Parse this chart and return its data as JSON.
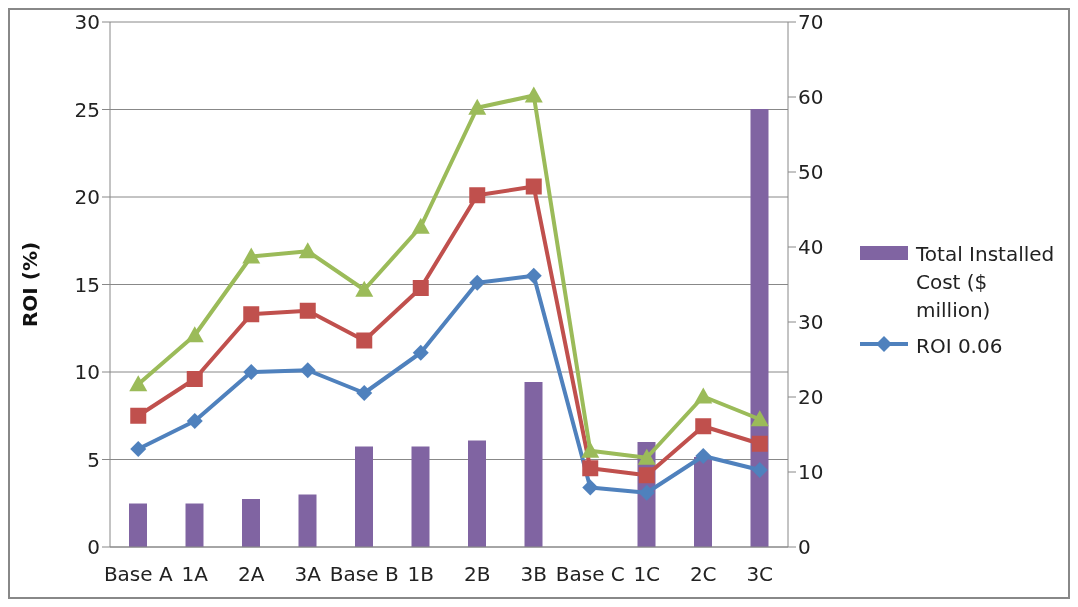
{
  "chart_data": {
    "type": "line",
    "ylabel": "ROI (%)",
    "categories": [
      "Base A",
      "1A",
      "2A",
      "3A",
      "Base B",
      "1B",
      "2B",
      "3B",
      "Base C",
      "1C",
      "2C",
      "3C"
    ],
    "series": [
      {
        "name": "Total Installed Cost ($ million)",
        "type": "bar",
        "axis": "y2",
        "color": "#8064a2",
        "values": [
          5.8,
          5.8,
          6.4,
          7.0,
          13.4,
          13.4,
          14.2,
          22.0,
          null,
          14.0,
          12.0,
          58.4
        ]
      },
      {
        "name": "ROI 0.06",
        "color": "#4f81bd",
        "marker": "diamond",
        "values": [
          5.6,
          7.2,
          10.0,
          10.1,
          8.8,
          11.1,
          15.1,
          15.5,
          3.4,
          3.1,
          5.2,
          4.4
        ]
      },
      {
        "color": "#c0504d",
        "marker": "square",
        "values": [
          7.5,
          9.6,
          13.3,
          13.5,
          11.8,
          14.8,
          20.1,
          20.6,
          4.5,
          4.1,
          6.9,
          5.9
        ]
      },
      {
        "color": "#9bbb59",
        "marker": "triangle",
        "values": [
          9.3,
          12.1,
          16.6,
          16.9,
          14.7,
          18.3,
          25.1,
          25.8,
          5.5,
          5.1,
          8.6,
          7.3
        ]
      }
    ],
    "ylim": [
      0,
      30
    ],
    "yticks": [
      0,
      5,
      10,
      15,
      20,
      25,
      30
    ],
    "y2lim": [
      0,
      70
    ],
    "y2ticks": [
      0,
      10,
      20,
      30,
      40,
      50,
      60,
      70
    ],
    "grid": "y",
    "legend": "right",
    "line_style": "solid"
  }
}
